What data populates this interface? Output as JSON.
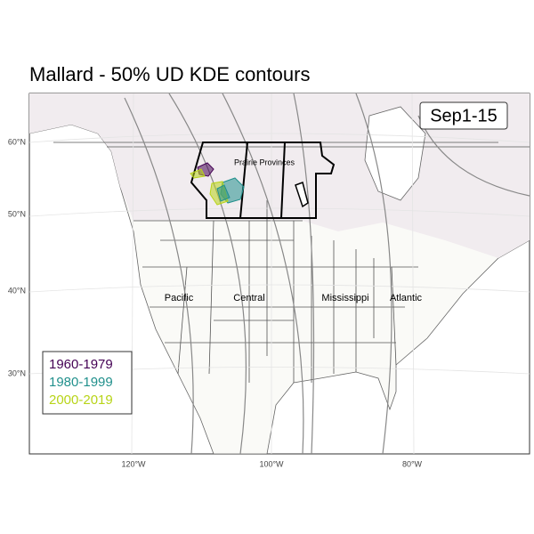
{
  "title": "Mallard - 50% UD KDE contours",
  "panel_label": "Sep1-15",
  "regions": [
    "Prairie Provinces",
    "Pacific",
    "Central",
    "Mississippi",
    "Atlantic"
  ],
  "legend": [
    {
      "label": "1960-1979",
      "color": "#440154"
    },
    {
      "label": "1980-1999",
      "color": "#21908c"
    },
    {
      "label": "2000-2019",
      "color": "#b8d418"
    }
  ],
  "lat_ticks": [
    "60°N",
    "50°N",
    "40°N",
    "30°N"
  ],
  "lon_ticks": [
    "120°W",
    "100°W",
    "80°W"
  ]
}
